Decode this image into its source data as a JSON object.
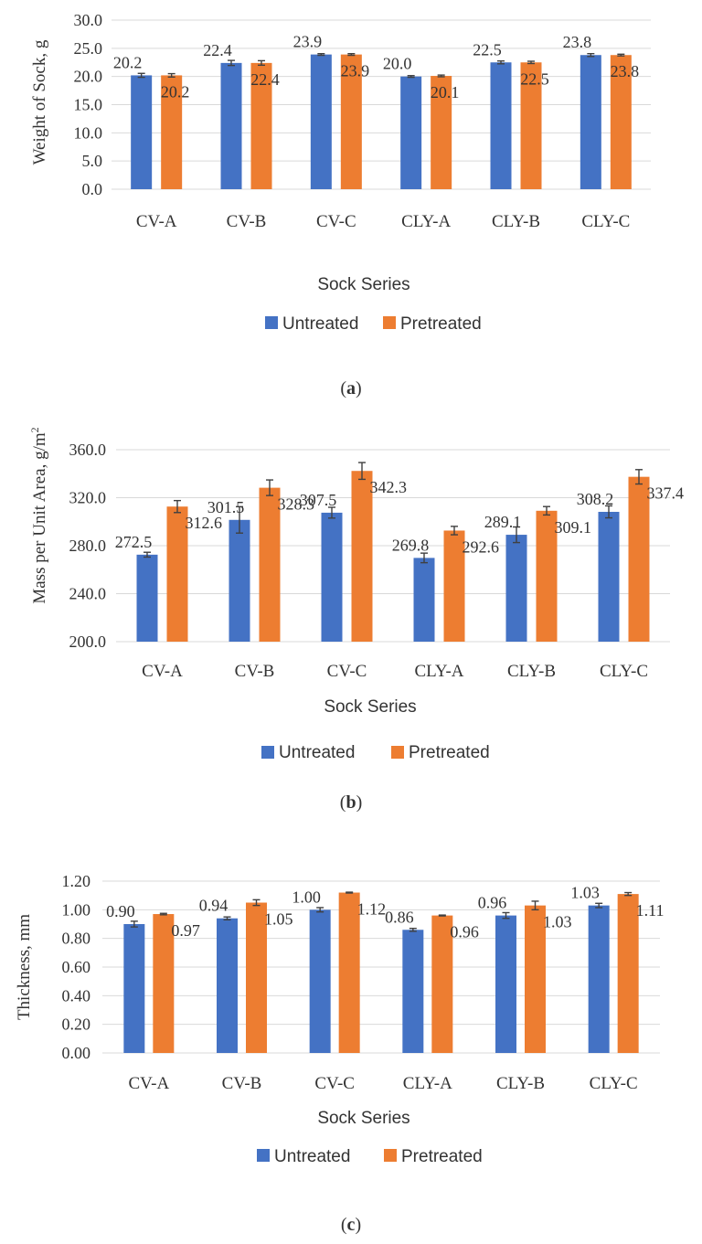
{
  "colors": {
    "untreated": "#4472C4",
    "pretreated": "#ED7D31",
    "grid": "#d9d9d9",
    "errorbar": "#404040"
  },
  "chart_data": [
    {
      "type": "bar",
      "panel_label": "a",
      "categories": [
        "CV-A",
        "CV-B",
        "CV-C",
        "CLY-A",
        "CLY-B",
        "CLY-C"
      ],
      "series": [
        {
          "name": "Untreated",
          "values": [
            20.2,
            22.4,
            23.9,
            20.0,
            22.5,
            23.8
          ],
          "labels": [
            "20.2",
            "22.4",
            "23.9",
            "20.0",
            "22.5",
            "23.8"
          ],
          "errors": [
            0.35,
            0.45,
            0.15,
            0.15,
            0.25,
            0.25
          ]
        },
        {
          "name": "Pretreated",
          "values": [
            20.2,
            22.4,
            23.9,
            20.1,
            22.5,
            23.8
          ],
          "labels": [
            "20.2",
            "22.4",
            "23.9",
            "20.1",
            "22.5",
            "23.8"
          ],
          "errors": [
            0.3,
            0.4,
            0.15,
            0.15,
            0.2,
            0.15
          ]
        }
      ],
      "xlabel": "Sock Series",
      "ylabel": "Weight of Sock, g",
      "ylim": [
        0,
        30
      ],
      "yticks": [
        "0.0",
        "5.0",
        "10.0",
        "15.0",
        "20.0",
        "25.0",
        "30.0"
      ],
      "grid": true,
      "legend": "bottom"
    },
    {
      "type": "bar",
      "panel_label": "b",
      "categories": [
        "CV-A",
        "CV-B",
        "CV-C",
        "CLY-A",
        "CLY-B",
        "CLY-C"
      ],
      "series": [
        {
          "name": "Untreated",
          "values": [
            272.5,
            301.5,
            307.5,
            269.8,
            289.1,
            308.2
          ],
          "labels": [
            "272.5",
            "301.5",
            "307.5",
            "269.8",
            "289.1",
            "308.2"
          ],
          "errors": [
            2.0,
            11.0,
            4.5,
            4.0,
            6.5,
            5.0
          ]
        },
        {
          "name": "Pretreated",
          "values": [
            312.6,
            328.3,
            342.3,
            292.6,
            309.1,
            337.4
          ],
          "labels": [
            "312.6",
            "328.3",
            "342.3",
            "292.6",
            "309.1",
            "337.4"
          ],
          "errors": [
            5.0,
            6.5,
            7.0,
            3.5,
            3.5,
            6.0
          ]
        }
      ],
      "xlabel": "Sock Series",
      "ylabel": "Mass per Unit Area, g/m",
      "ylabel_superscript": "2",
      "ylim": [
        200,
        360
      ],
      "yticks": [
        "200.0",
        "240.0",
        "280.0",
        "320.0",
        "360.0"
      ],
      "grid": true,
      "legend": "bottom"
    },
    {
      "type": "bar",
      "panel_label": "c",
      "categories": [
        "CV-A",
        "CV-B",
        "CV-C",
        "CLY-A",
        "CLY-B",
        "CLY-C"
      ],
      "series": [
        {
          "name": "Untreated",
          "values": [
            0.9,
            0.94,
            1.0,
            0.86,
            0.96,
            1.03
          ],
          "labels": [
            "0.90",
            "0.94",
            "1.00",
            "0.86",
            "0.96",
            "1.03"
          ],
          "errors": [
            0.02,
            0.01,
            0.015,
            0.01,
            0.02,
            0.015
          ]
        },
        {
          "name": "Pretreated",
          "values": [
            0.97,
            1.05,
            1.12,
            0.96,
            1.03,
            1.11
          ],
          "labels": [
            "0.97",
            "1.05",
            "1.12",
            "0.96",
            "1.03",
            "1.11"
          ],
          "errors": [
            0.005,
            0.02,
            0.003,
            0.003,
            0.03,
            0.01
          ]
        }
      ],
      "xlabel": "Sock Series",
      "ylabel": "Thickness, mm",
      "ylim": [
        0,
        1.2
      ],
      "yticks": [
        "0.00",
        "0.20",
        "0.40",
        "0.60",
        "0.80",
        "1.00",
        "1.20"
      ],
      "grid": true,
      "legend": "bottom"
    }
  ]
}
